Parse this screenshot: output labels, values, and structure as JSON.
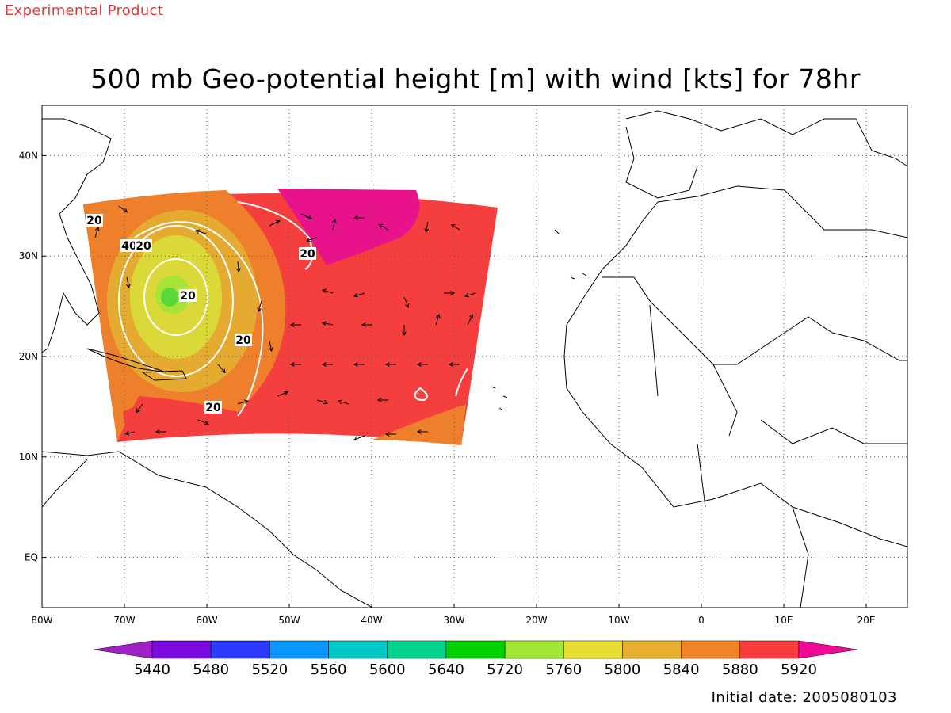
{
  "header": {
    "experimental_label": "Experimental Product",
    "title": "500 mb Geo-potential height [m] with wind [kts] for 78hr"
  },
  "footer": {
    "initial_date": "Initial date: 2005080103"
  },
  "map": {
    "lon_range": [
      -80,
      25
    ],
    "lat_range": [
      -5,
      45
    ],
    "lon_ticks": [
      {
        "value": -80,
        "label": "80W"
      },
      {
        "value": -70,
        "label": "70W"
      },
      {
        "value": -60,
        "label": "60W"
      },
      {
        "value": -50,
        "label": "50W"
      },
      {
        "value": -40,
        "label": "40W"
      },
      {
        "value": -30,
        "label": "30W"
      },
      {
        "value": -20,
        "label": "20W"
      },
      {
        "value": -10,
        "label": "10W"
      },
      {
        "value": 0,
        "label": "0"
      },
      {
        "value": 10,
        "label": "10E"
      },
      {
        "value": 20,
        "label": "20E"
      }
    ],
    "lat_ticks": [
      {
        "value": 40,
        "label": "40N"
      },
      {
        "value": 30,
        "label": "30N"
      },
      {
        "value": 20,
        "label": "20N"
      },
      {
        "value": 10,
        "label": "10N"
      },
      {
        "value": 0,
        "label": "EQ"
      }
    ],
    "grid": "dotted",
    "coastline_color": "#000000",
    "isotach_color": "#ffffff",
    "isotach_labels": [
      "20",
      "40",
      "20",
      "20",
      "20",
      "20",
      "20"
    ],
    "domain_fill": "#f53f3f",
    "high_core_color": "#e8138a",
    "trough_colors": [
      "#ee7f2b",
      "#e4ab30",
      "#dbd83a",
      "#a8e33a",
      "#5ad83a"
    ]
  },
  "colorbar": {
    "labels": [
      "5440",
      "5480",
      "5520",
      "5560",
      "5600",
      "5640",
      "5720",
      "5760",
      "5800",
      "5840",
      "5880",
      "5920"
    ],
    "colors": [
      "#a020c8",
      "#7a0ae0",
      "#2c3cff",
      "#0a96ff",
      "#00c8c8",
      "#00d28c",
      "#00d200",
      "#a0e632",
      "#e6dc32",
      "#e6af2d",
      "#f08228",
      "#fa3c3c",
      "#f00a96"
    ]
  }
}
